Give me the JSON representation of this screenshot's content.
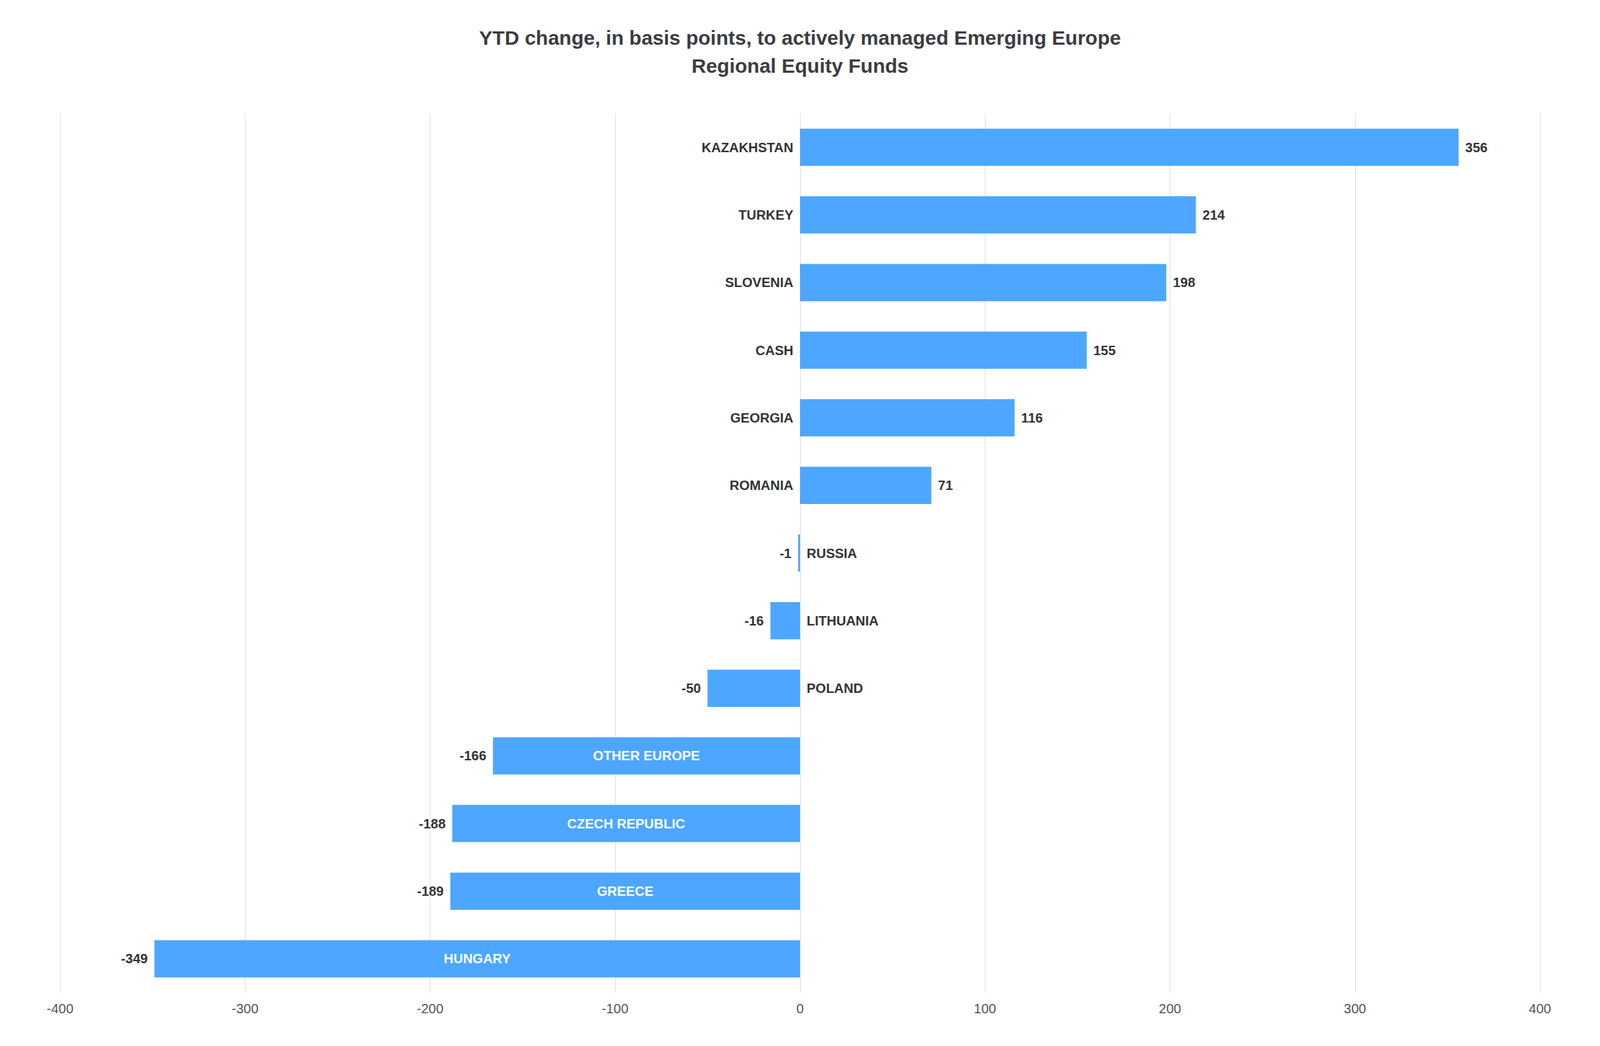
{
  "chart_data": {
    "type": "bar",
    "orientation": "horizontal",
    "title": "YTD change, in basis points, to actively managed Emerging Europe\nRegional Equity Funds",
    "categories": [
      "KAZAKHSTAN",
      "TURKEY",
      "SLOVENIA",
      "CASH",
      "GEORGIA",
      "ROMANIA",
      "RUSSIA",
      "LITHUANIA",
      "POLAND",
      "OTHER EUROPE",
      "CZECH REPUBLIC",
      "GREECE",
      "HUNGARY"
    ],
    "values": [
      356,
      214,
      198,
      155,
      116,
      71,
      -1,
      -16,
      -50,
      -166,
      -188,
      -189,
      -349
    ],
    "color": "#4da6ff",
    "xlim": [
      -400,
      400
    ],
    "xticks": [
      -400,
      -300,
      -200,
      -100,
      0,
      100,
      200,
      300,
      400
    ],
    "grid": true,
    "data_labels": true,
    "tick_labels": "x"
  }
}
